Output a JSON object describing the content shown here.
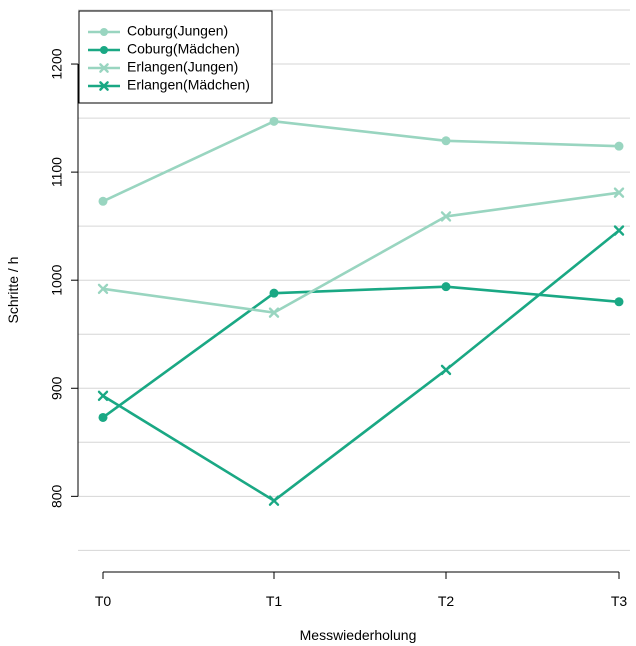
{
  "chart_data": {
    "type": "line",
    "xlabel": "Messwiederholung",
    "ylabel": "Schritte / h",
    "categories": [
      "T0",
      "T1",
      "T2",
      "T3"
    ],
    "ylim": [
      730,
      1250
    ],
    "yticks": [
      800,
      900,
      1000,
      1100,
      1200
    ],
    "grid": "horizontal",
    "legend_position": "top-left",
    "series": [
      {
        "name": "Coburg(Jungen)",
        "values": [
          1073,
          1147,
          1129,
          1124
        ],
        "color": "#99d5c0",
        "marker": "circle"
      },
      {
        "name": "Coburg(Mädchen)",
        "values": [
          873,
          988,
          994,
          980
        ],
        "color": "#1aa884",
        "marker": "circle"
      },
      {
        "name": "Erlangen(Jungen)",
        "values": [
          992,
          970,
          1059,
          1081
        ],
        "color": "#99d5c0",
        "marker": "cross"
      },
      {
        "name": "Erlangen(Mädchen)",
        "values": [
          893,
          796,
          917,
          1046
        ],
        "color": "#1aa884",
        "marker": "cross"
      }
    ]
  }
}
